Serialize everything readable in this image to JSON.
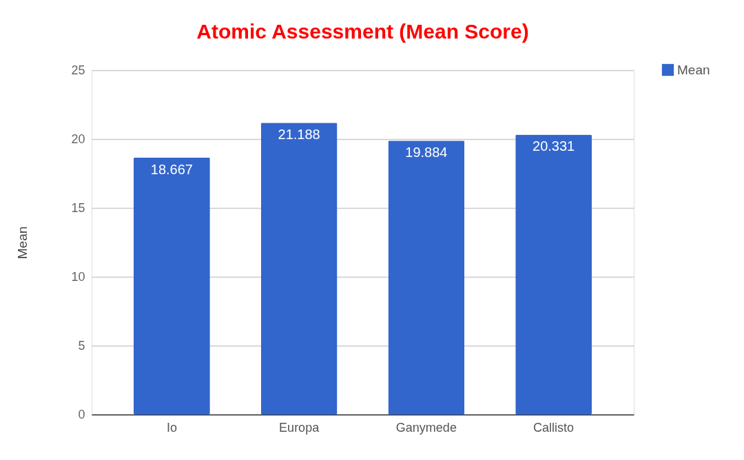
{
  "chart_data": {
    "type": "bar",
    "title": "Atomic Assessment (Mean Score)",
    "ylabel": "Mean",
    "categories": [
      "Io",
      "Europa",
      "Ganymede",
      "Callisto"
    ],
    "series": [
      {
        "name": "Mean",
        "color": "#3366cc",
        "values": [
          18.667,
          21.188,
          19.884,
          20.331
        ]
      }
    ],
    "ylim": [
      0,
      25
    ],
    "yticks": [
      0,
      5,
      10,
      15,
      20,
      25
    ],
    "grid": "y",
    "legend": "top right",
    "data_labels": true
  }
}
